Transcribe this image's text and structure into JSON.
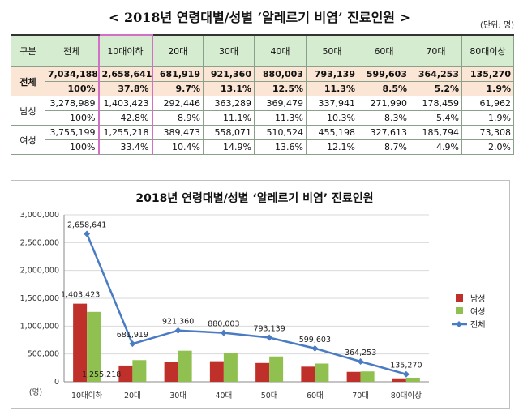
{
  "page": {
    "title": "< 2018년 연령대별/성별 ‘알레르기 비염’ 진료인원 >",
    "unit_note": "(단위: 명)"
  },
  "table": {
    "columns": [
      "구분",
      "전체",
      "10대이하",
      "20대",
      "30대",
      "40대",
      "50대",
      "60대",
      "70대",
      "80대이상"
    ],
    "groups": [
      {
        "label": "전체",
        "counts": [
          "7,034,188",
          "2,658,641",
          "681,919",
          "921,360",
          "880,003",
          "793,139",
          "599,603",
          "364,253",
          "135,270"
        ],
        "shares": [
          "100%",
          "37.8%",
          "9.7%",
          "13.1%",
          "12.5%",
          "11.3%",
          "8.5%",
          "5.2%",
          "1.9%"
        ]
      },
      {
        "label": "남성",
        "counts": [
          "3,278,989",
          "1,403,423",
          "292,446",
          "363,289",
          "369,479",
          "337,941",
          "271,990",
          "178,459",
          "61,962"
        ],
        "shares": [
          "100%",
          "42.8%",
          "8.9%",
          "11.1%",
          "11.3%",
          "10.3%",
          "8.3%",
          "5.4%",
          "1.9%"
        ]
      },
      {
        "label": "여성",
        "counts": [
          "3,755,199",
          "1,255,218",
          "389,473",
          "558,071",
          "510,524",
          "455,198",
          "327,613",
          "185,794",
          "73,308"
        ],
        "shares": [
          "100%",
          "33.4%",
          "10.4%",
          "14.9%",
          "13.6%",
          "12.1%",
          "8.7%",
          "4.9%",
          "2.0%"
        ]
      }
    ]
  },
  "chart_data": {
    "type": "bar",
    "title": "2018년 연령대별/성별 ‘알레르기 비염’ 진료인원",
    "categories": [
      "10대이하",
      "20대",
      "30대",
      "40대",
      "50대",
      "60대",
      "70대",
      "80대이상"
    ],
    "series": [
      {
        "name": "남성",
        "type": "bar",
        "color": "#c0302b",
        "values": [
          1403423,
          292446,
          363289,
          369479,
          337941,
          271990,
          178459,
          61962
        ]
      },
      {
        "name": "여성",
        "type": "bar",
        "color": "#8fc050",
        "values": [
          1255218,
          389473,
          558071,
          510524,
          455198,
          327613,
          185794,
          73308
        ]
      },
      {
        "name": "전체",
        "type": "line",
        "color": "#4a7cc4",
        "values": [
          2658641,
          681919,
          921360,
          880003,
          793139,
          599603,
          364253,
          135270
        ]
      }
    ],
    "annotations": [
      {
        "series": "남성",
        "category": "10대이하",
        "text": "1,403,423"
      },
      {
        "series": "여성",
        "category": "10대이하",
        "text": "1,255,218"
      },
      {
        "series": "전체",
        "category": "10대이하",
        "text": "2,658,641"
      },
      {
        "series": "전체",
        "category": "20대",
        "text": "681,919"
      },
      {
        "series": "전체",
        "category": "30대",
        "text": "921,360"
      },
      {
        "series": "전체",
        "category": "40대",
        "text": "880,003"
      },
      {
        "series": "전체",
        "category": "50대",
        "text": "793,139"
      },
      {
        "series": "전체",
        "category": "60대",
        "text": "599,603"
      },
      {
        "series": "전체",
        "category": "70대",
        "text": "364,253"
      },
      {
        "series": "전체",
        "category": "80대이상",
        "text": "135,270"
      }
    ],
    "y_ticks": [
      "0",
      "500,000",
      "1,000,000",
      "1,500,000",
      "2,000,000",
      "2,500,000",
      "3,000,000"
    ],
    "ylabel": "(명)",
    "ylim": [
      0,
      3000000
    ],
    "grid": true,
    "legend": "right"
  }
}
